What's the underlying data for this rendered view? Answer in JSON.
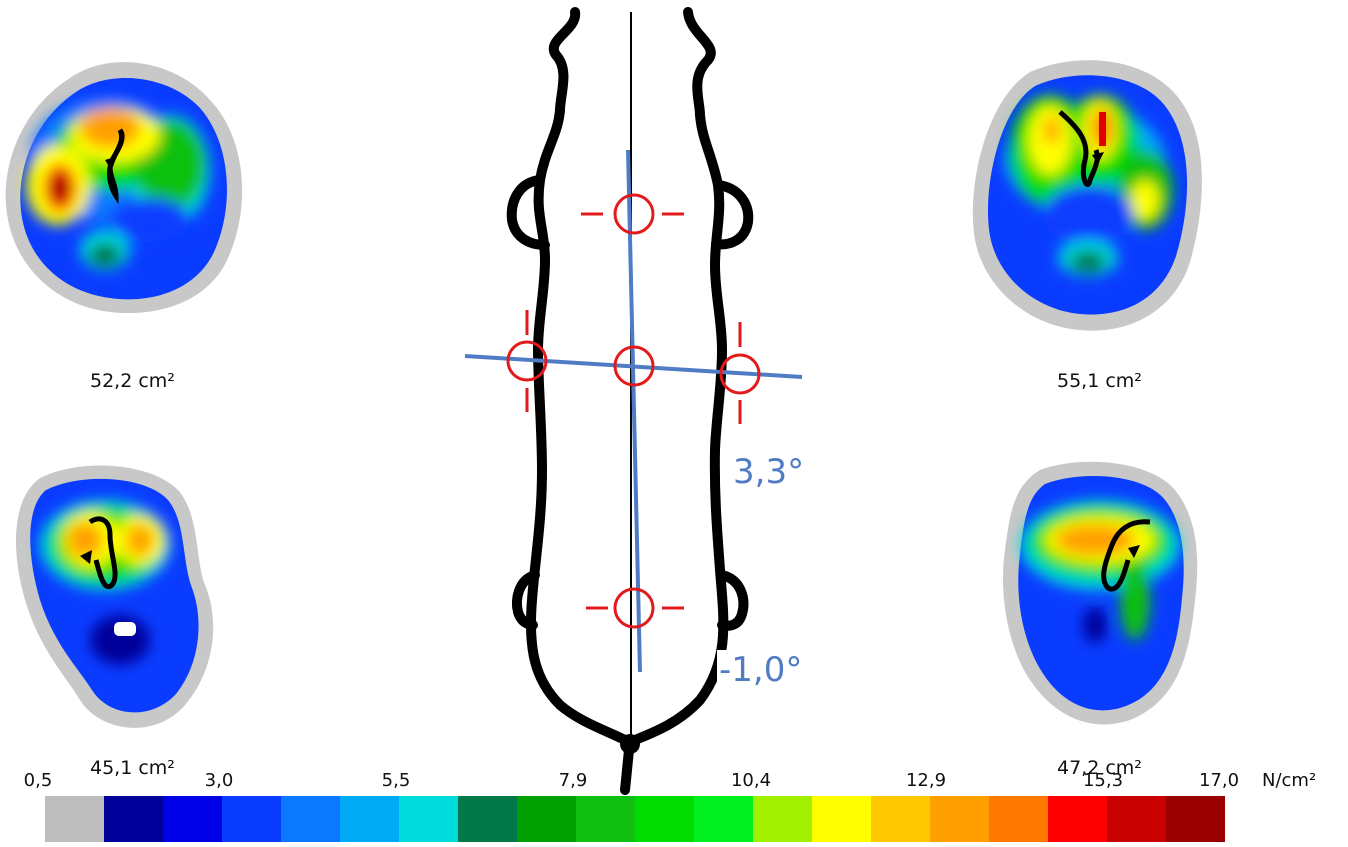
{
  "areas": {
    "front_left": "52,2 cm²",
    "front_right": "55,1 cm²",
    "rear_left": "45,1 cm²",
    "rear_right": "47,2 cm²"
  },
  "angles": {
    "upper": "3,3°",
    "lower": "-1,0°"
  },
  "scale": {
    "ticks": [
      "0,5",
      "3,0",
      "5,5",
      "7,9",
      "10,4",
      "12,9",
      "15,3",
      "17,0"
    ],
    "unit": "N/cm²",
    "colors": [
      "#bdbdbd",
      "#00009a",
      "#0000e6",
      "#0a3cff",
      "#0a78ff",
      "#00aaf5",
      "#00dcdc",
      "#007848",
      "#00a000",
      "#10c010",
      "#00dc00",
      "#00f020",
      "#a0f000",
      "#ffff00",
      "#ffc800",
      "#ffa000",
      "#ff7800",
      "#ff0000",
      "#c80000",
      "#9a0000"
    ]
  },
  "colors": {
    "axis_line": "#4f7cc4",
    "marker": "#e31a1c",
    "outline": "#000000"
  }
}
